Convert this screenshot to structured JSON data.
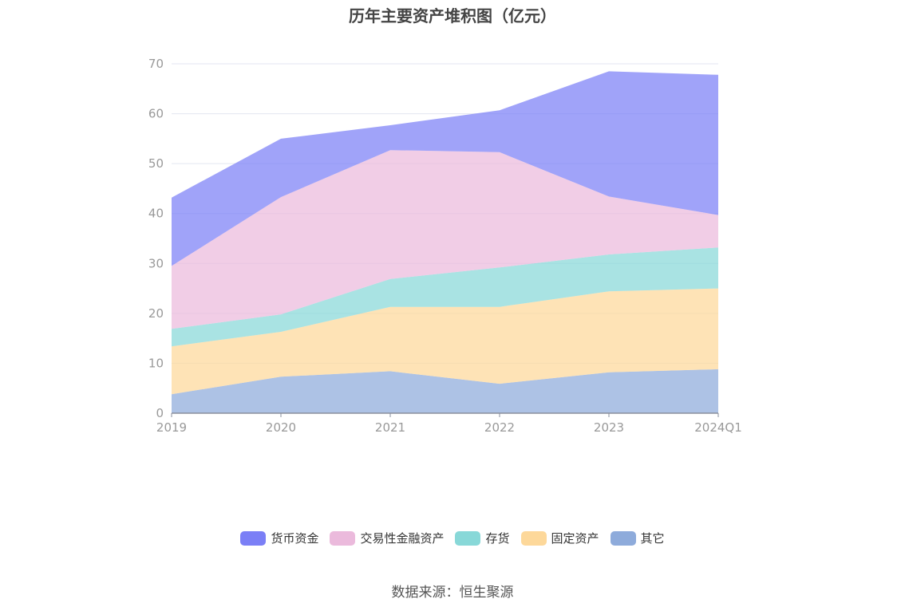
{
  "chart_data": {
    "type": "area",
    "stacked": true,
    "title": "历年主要资产堆积图（亿元）",
    "categories": [
      "2019",
      "2020",
      "2021",
      "2022",
      "2023",
      "2024Q1"
    ],
    "ylim": [
      0,
      70
    ],
    "yticks": [
      0,
      10,
      20,
      30,
      40,
      50,
      60,
      70
    ],
    "grid": true,
    "legend_position": "bottom",
    "series": [
      {
        "name": "其它",
        "color": "#8eabdb",
        "values": [
          3.8,
          7.3,
          8.4,
          5.9,
          8.2,
          8.8
        ]
      },
      {
        "name": "固定资产",
        "color": "#fdd89a",
        "values": [
          9.6,
          9.0,
          12.9,
          15.4,
          16.2,
          16.2
        ]
      },
      {
        "name": "存货",
        "color": "#88d8d8",
        "values": [
          3.5,
          3.5,
          5.6,
          7.9,
          7.4,
          8.2
        ]
      },
      {
        "name": "交易性金融资产",
        "color": "#ebbadc",
        "values": [
          12.6,
          23.5,
          25.8,
          23.1,
          11.6,
          6.5
        ]
      },
      {
        "name": "货币资金",
        "color": "#7b7ff6",
        "values": [
          13.7,
          11.7,
          5.0,
          8.4,
          25.1,
          28.1
        ]
      }
    ],
    "legend_order": [
      "货币资金",
      "交易性金融资产",
      "存货",
      "固定资产",
      "其它"
    ]
  },
  "source_text": "数据来源：恒生聚源"
}
